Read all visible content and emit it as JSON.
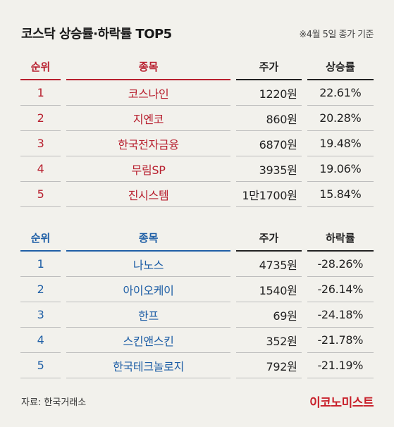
{
  "title": "코스닥 상승률·하락률 TOP5",
  "note": "※4월 5일 종가 기준",
  "gainers": {
    "headers": {
      "rank": "순위",
      "name": "종목",
      "price": "주가",
      "rate": "상승률"
    },
    "rows": [
      {
        "rank": "1",
        "name": "코스나인",
        "price": "1220원",
        "rate": "22.61%"
      },
      {
        "rank": "2",
        "name": "지엔코",
        "price": "860원",
        "rate": "20.28%"
      },
      {
        "rank": "3",
        "name": "한국전자금융",
        "price": "6870원",
        "rate": "19.48%"
      },
      {
        "rank": "4",
        "name": "무림SP",
        "price": "3935원",
        "rate": "19.06%"
      },
      {
        "rank": "5",
        "name": "진시스템",
        "price": "1만1700원",
        "rate": "15.84%"
      }
    ]
  },
  "losers": {
    "headers": {
      "rank": "순위",
      "name": "종목",
      "price": "주가",
      "rate": "하락률"
    },
    "rows": [
      {
        "rank": "1",
        "name": "나노스",
        "price": "4735원",
        "rate": "-28.26%"
      },
      {
        "rank": "2",
        "name": "아이오케이",
        "price": "1540원",
        "rate": "-26.14%"
      },
      {
        "rank": "3",
        "name": "한프",
        "price": "69원",
        "rate": "-24.18%"
      },
      {
        "rank": "4",
        "name": "스킨앤스킨",
        "price": "352원",
        "rate": "-21.78%"
      },
      {
        "rank": "5",
        "name": "한국테크놀로지",
        "price": "792원",
        "rate": "-21.19%"
      }
    ]
  },
  "source": "자료: 한국거래소",
  "brand": "이코노미스트",
  "colors": {
    "gainers_accent": "#b8202f",
    "losers_accent": "#1f5fa6",
    "brand": "#c8202a"
  }
}
